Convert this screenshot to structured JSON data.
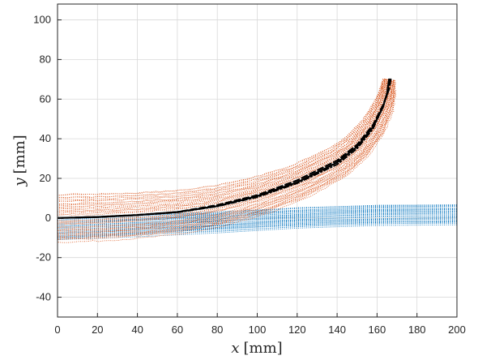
{
  "chart_data": {
    "type": "scatter",
    "title": "",
    "xlabel": {
      "var": "x",
      "unit": "[mm]"
    },
    "ylabel": {
      "var": "y",
      "unit": "[mm]"
    },
    "xlim": [
      0,
      200
    ],
    "ylim": [
      -50,
      108
    ],
    "xticks": [
      0,
      20,
      40,
      60,
      80,
      100,
      120,
      140,
      160,
      180,
      200
    ],
    "yticks": [
      -40,
      -20,
      0,
      20,
      40,
      60,
      80,
      100
    ],
    "grid": true,
    "legend": "none",
    "colors": {
      "blue_band": "#0072BD",
      "orange_band": "#D95319",
      "centerline": "#000000",
      "grid": "#d9d9d9",
      "axes": "#262626"
    },
    "series": [
      {
        "style": "dotted-band-blue",
        "centerline": {
          "x": [
            0,
            40,
            80,
            120,
            160,
            200
          ],
          "y": [
            -6,
            -4,
            -2,
            0,
            1.5,
            2
          ]
        },
        "halfwidth": 5
      },
      {
        "style": "dotted-band-orange",
        "centerline": {
          "x": [
            0,
            20,
            40,
            60,
            80,
            100,
            120,
            140,
            150,
            158,
            163,
            165,
            166
          ],
          "y": [
            0,
            0.5,
            1.5,
            3,
            6,
            11,
            18,
            28,
            36,
            46,
            56,
            63,
            70
          ]
        },
        "halfwidth_start": 12,
        "halfwidth_end": 3
      },
      {
        "style": "solid-black",
        "x": [
          0,
          20,
          40,
          60,
          80,
          100,
          120,
          140,
          150,
          158,
          163,
          165,
          166
        ],
        "y": [
          0,
          0.5,
          1.5,
          3,
          6,
          11,
          18,
          28,
          36,
          46,
          56,
          63,
          70
        ]
      },
      {
        "style": "dashed-black",
        "x": [
          0,
          20,
          40,
          60,
          80,
          100,
          120,
          140,
          150,
          158,
          163,
          166,
          167
        ],
        "y": [
          0,
          0.5,
          1.5,
          3,
          6.5,
          11.5,
          19,
          29,
          37,
          47,
          57,
          65,
          71
        ]
      },
      {
        "style": "dashdot-black",
        "x": [
          0,
          20,
          40,
          60,
          80,
          100,
          120,
          140,
          150,
          158,
          162,
          165,
          166
        ],
        "y": [
          0,
          0.5,
          1.4,
          2.8,
          5.8,
          10.5,
          17.5,
          27,
          35,
          45,
          54,
          62,
          69
        ]
      }
    ]
  }
}
